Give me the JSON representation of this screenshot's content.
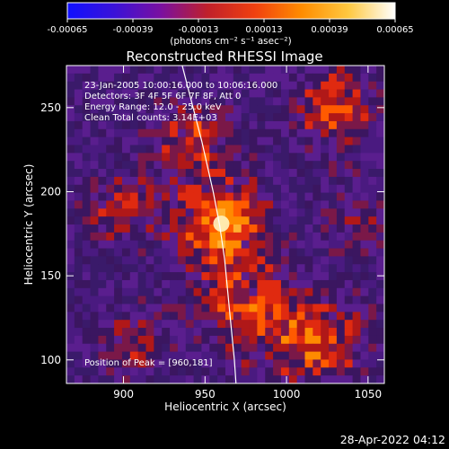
{
  "colorbar": {
    "tick_labels": [
      "-0.00065",
      "-0.00039",
      "-0.00013",
      "0.00013",
      "0.00039",
      "0.00065"
    ],
    "min": -0.00065,
    "max": 0.00065,
    "units_label": "(photons cm⁻² s⁻¹ asec⁻²)",
    "colors": [
      "#1010ff",
      "#3a12d8",
      "#7a10a0",
      "#c0202a",
      "#f04010",
      "#ff8c00",
      "#ffc840",
      "#ffffff"
    ]
  },
  "chart_data": {
    "type": "heatmap",
    "title": "Reconstructed RHESSI Image",
    "xlabel": "Heliocentric X (arcsec)",
    "ylabel": "Heliocentric Y (arcsec)",
    "xlim": [
      865,
      1060
    ],
    "ylim": [
      86,
      275
    ],
    "x_ticks": [
      900,
      950,
      1000,
      1050
    ],
    "y_ticks": [
      100,
      150,
      200,
      250
    ],
    "x_tick_labels": [
      "900",
      "950",
      "1000",
      "1050"
    ],
    "y_tick_labels": [
      "100",
      "150",
      "200",
      "250"
    ],
    "peak": {
      "x": 960,
      "y": 181
    },
    "peak_label": "Position of Peak = [960,181]",
    "limb": [
      [
        936,
        275
      ],
      [
        948,
        230
      ],
      [
        955,
        200
      ],
      [
        959,
        180
      ],
      [
        962,
        160
      ],
      [
        965,
        130
      ],
      [
        968,
        100
      ],
      [
        969,
        86
      ]
    ],
    "annotations": [
      "23-Jan-2005 10:00:16.000 to 10:06:16.000",
      "Detectors: 3F 4F 5F 6F 7F 8F, Att 0",
      "Energy Range: 12.0 - 25.0 keV",
      "Clean     Total counts: 3.14E+03"
    ],
    "colors": {
      "limb": "#ffffff",
      "axes": "#ffffff",
      "background": "#000000"
    }
  },
  "footer": {
    "timestamp": "28-Apr-2022 04:12"
  }
}
